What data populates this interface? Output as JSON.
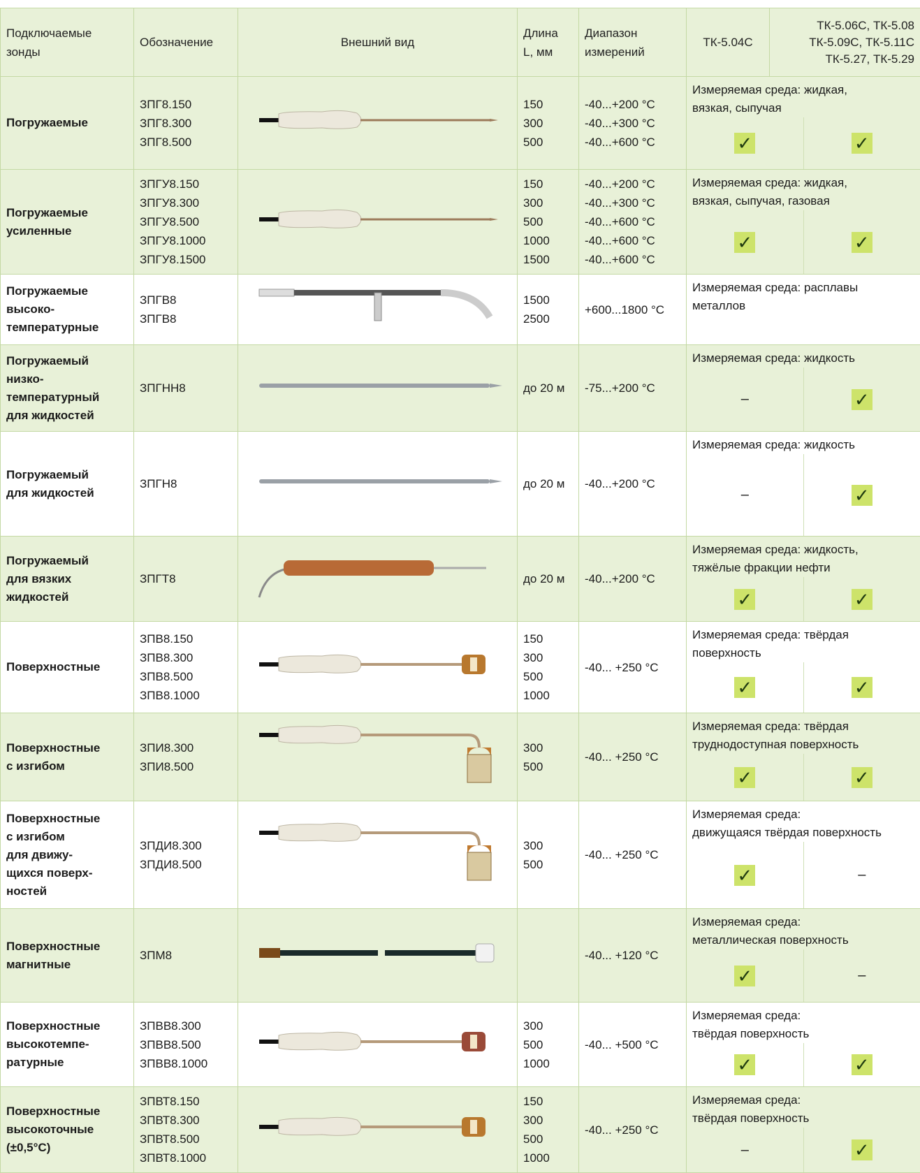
{
  "header": {
    "name": "Подключаемые\nзонды",
    "designation": "Обозначение",
    "appearance": "Внешний вид",
    "length": [
      "Длина",
      "L, мм"
    ],
    "range": [
      "Диапазон",
      "измерений"
    ],
    "tk1": "ТК-5.04С",
    "tk2": [
      "ТК-5.06С, ТК-5.08",
      "ТК-5.09С, ТК-5.11С",
      "ТК-5.27, ТК-5.29"
    ]
  },
  "rows": [
    {
      "name": [
        "Погружаемые"
      ],
      "designations": [
        "ЗПГ8.150",
        "ЗПГ8.300",
        "ЗПГ8.500"
      ],
      "lengths": [
        "150",
        "300",
        "500"
      ],
      "ranges": [
        "-40...+200 °C",
        "-40...+300 °C",
        "-40...+600 °C"
      ],
      "medium": [
        "Измеряемая среда: жидкая,",
        "вязкая, сыпучая"
      ],
      "checks": [
        "✓",
        "✓"
      ]
    },
    {
      "name": [
        "Погружаемые",
        "усиленные"
      ],
      "designations": [
        "ЗПГУ8.150",
        "ЗПГУ8.300",
        "ЗПГУ8.500",
        "ЗПГУ8.1000",
        "ЗПГУ8.1500"
      ],
      "lengths": [
        "150",
        "300",
        "500",
        "1000",
        "1500"
      ],
      "ranges": [
        "-40...+200 °C",
        "-40...+300 °C",
        "-40...+600 °C",
        "-40...+600 °C",
        "-40...+600 °C"
      ],
      "medium": [
        "Измеряемая среда:  жидкая,",
        "вязкая, сыпучая, газовая"
      ],
      "checks": [
        "✓",
        "✓"
      ]
    },
    {
      "name": [
        "Погружаемые",
        "высоко-",
        "температурные"
      ],
      "designations": [
        "ЗПГВ8",
        "ЗПГВ8"
      ],
      "lengths": [
        "1500",
        "2500"
      ],
      "ranges": [
        "+600...1800 °C"
      ],
      "medium": [
        "Измеряемая среда: расплавы",
        "металлов"
      ],
      "checks": []
    },
    {
      "name": [
        "Погружаемый",
        "низко-",
        "температурный",
        "для жидкостей"
      ],
      "designations": [
        "ЗПГНН8"
      ],
      "lengths": [
        "до 20 м"
      ],
      "ranges": [
        "-75...+200 °C"
      ],
      "medium": [
        "Измеряемая среда: жидкость"
      ],
      "checks": [
        "–",
        "✓"
      ]
    },
    {
      "name": [
        "Погружаемый",
        "для жидкостей"
      ],
      "designations": [
        "ЗПГН8"
      ],
      "lengths": [
        "до 20 м"
      ],
      "ranges": [
        "-40...+200 °C"
      ],
      "medium": [
        "Измеряемая среда: жидкость"
      ],
      "checks": [
        "–",
        "✓"
      ]
    },
    {
      "name": [
        "Погружаемый",
        "для вязких",
        "жидкостей"
      ],
      "designations": [
        "ЗПГТ8"
      ],
      "lengths": [
        "до 20 м"
      ],
      "ranges": [
        "-40...+200 °C"
      ],
      "medium": [
        "Измеряемая среда: жидкость,",
        "тяжёлые фракции нефти"
      ],
      "checks": [
        "✓",
        "✓"
      ]
    },
    {
      "name": [
        "Поверхностные"
      ],
      "designations": [
        "ЗПВ8.150",
        "ЗПВ8.300",
        "ЗПВ8.500",
        "ЗПВ8.1000"
      ],
      "lengths": [
        "150",
        "300",
        "500",
        "1000"
      ],
      "ranges": [
        "-40... +250 °C"
      ],
      "medium": [
        "Измеряемая среда:  твёрдая",
        "поверхность"
      ],
      "checks": [
        "✓",
        "✓"
      ]
    },
    {
      "name": [
        "Поверхностные",
        "с изгибом"
      ],
      "designations": [
        "ЗПИ8.300",
        "ЗПИ8.500"
      ],
      "lengths": [
        "300",
        "500"
      ],
      "ranges": [
        "-40... +250 °C"
      ],
      "medium": [
        "Измеряемая среда: твёрдая",
        "труднодоступная поверхность"
      ],
      "checks": [
        "✓",
        "✓"
      ]
    },
    {
      "name": [
        "Поверхностные",
        "с изгибом",
        "для движу-",
        "щихся поверх-",
        "ностей"
      ],
      "designations": [
        "ЗПДИ8.300",
        "ЗПДИ8.500"
      ],
      "lengths": [
        "300",
        "500"
      ],
      "ranges": [
        "-40... +250 °C"
      ],
      "medium": [
        "Измеряемая среда:",
        "движущаяся твёрдая поверхность"
      ],
      "checks": [
        "✓",
        "–"
      ]
    },
    {
      "name": [
        "Поверхностные",
        "магнитные"
      ],
      "designations": [
        "ЗПМ8"
      ],
      "lengths": [],
      "ranges": [
        "-40... +120 °C"
      ],
      "medium": [
        "Измеряемая среда:",
        "металлическая поверхность"
      ],
      "checks": [
        "✓",
        "–"
      ]
    },
    {
      "name": [
        "Поверхностные",
        "высокотемпе-",
        "ратурные"
      ],
      "designations": [
        "ЗПВВ8.300",
        "ЗПВВ8.500",
        "ЗПВВ8.1000"
      ],
      "lengths": [
        "300",
        "500",
        "1000"
      ],
      "ranges": [
        "-40... +500 °C"
      ],
      "medium": [
        "Измеряемая среда:",
        "твёрдая поверхность"
      ],
      "checks": [
        "✓",
        "✓"
      ]
    },
    {
      "name": [
        "Поверхностные",
        "высокоточные",
        "(±0,5°C)"
      ],
      "designations": [
        "ЗПВТ8.150",
        "ЗПВТ8.300",
        "ЗПВТ8.500",
        "ЗПВТ8.1000"
      ],
      "lengths": [
        "150",
        "300",
        "500",
        "1000"
      ],
      "ranges": [
        "-40... +250 °C"
      ],
      "medium": [
        "Измеряемая среда:",
        "твёрдая поверхность"
      ],
      "checks": [
        "–",
        "✓"
      ]
    }
  ]
}
